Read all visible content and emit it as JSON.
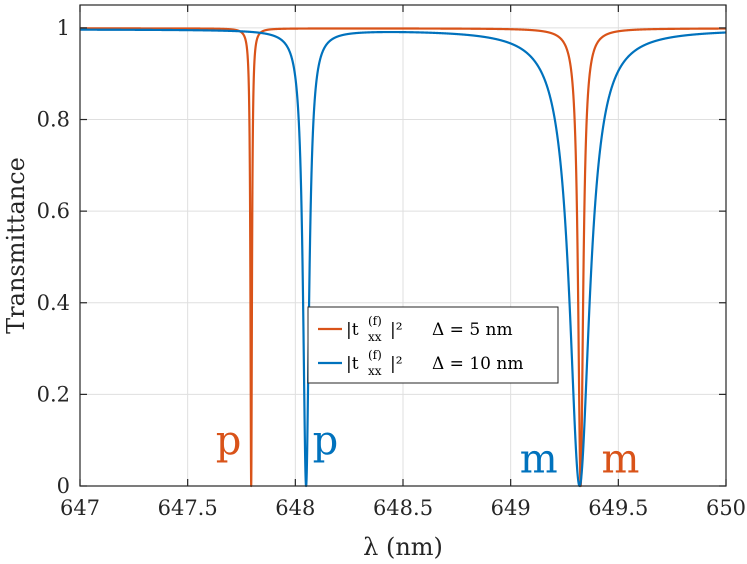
{
  "chart_data": {
    "type": "line",
    "xlabel": "λ (nm)",
    "ylabel": "Transmittance",
    "xlim": [
      647,
      650
    ],
    "ylim": [
      0,
      1.05
    ],
    "xticks": [
      "647",
      "647.5",
      "648",
      "648.5",
      "649",
      "649.5",
      "650"
    ],
    "yticks": [
      "0",
      "0.2",
      "0.4",
      "0.6",
      "0.8",
      "1"
    ],
    "grid": true,
    "legend_position": "center-right",
    "series": [
      {
        "name": "|txx(f)|²  Δ = 5 nm",
        "legend_main": "|t",
        "legend_sub": "xx",
        "legend_sup": "(f)",
        "legend_tail": "|²",
        "legend_delta": "Δ = 5 nm",
        "color": "#D95319",
        "resonances": [
          {
            "center": 647.795,
            "width": 0.0042,
            "depth": 1.0
          },
          {
            "center": 649.325,
            "width": 0.014,
            "depth": 1.0
          }
        ],
        "baseline": 0.999
      },
      {
        "name": "|txx(f)|²  Δ = 10 nm",
        "legend_main": "|t",
        "legend_sub": "xx",
        "legend_sup": "(f)",
        "legend_tail": "|²",
        "legend_delta": "Δ = 10 nm",
        "color": "#0072BD",
        "resonances": [
          {
            "center": 648.05,
            "width": 0.017,
            "depth": 1.0
          },
          {
            "center": 649.32,
            "width": 0.057,
            "depth": 1.0
          }
        ],
        "baseline": 0.997
      }
    ],
    "annotations": [
      {
        "text": "p",
        "x": 647.69,
        "y": 0.07,
        "color": "#D95319"
      },
      {
        "text": "p",
        "x": 648.14,
        "y": 0.07,
        "color": "#0072BD"
      },
      {
        "text": "m",
        "x": 649.13,
        "y": 0.03,
        "color": "#0072BD"
      },
      {
        "text": "m",
        "x": 649.51,
        "y": 0.03,
        "color": "#D95319"
      }
    ]
  }
}
